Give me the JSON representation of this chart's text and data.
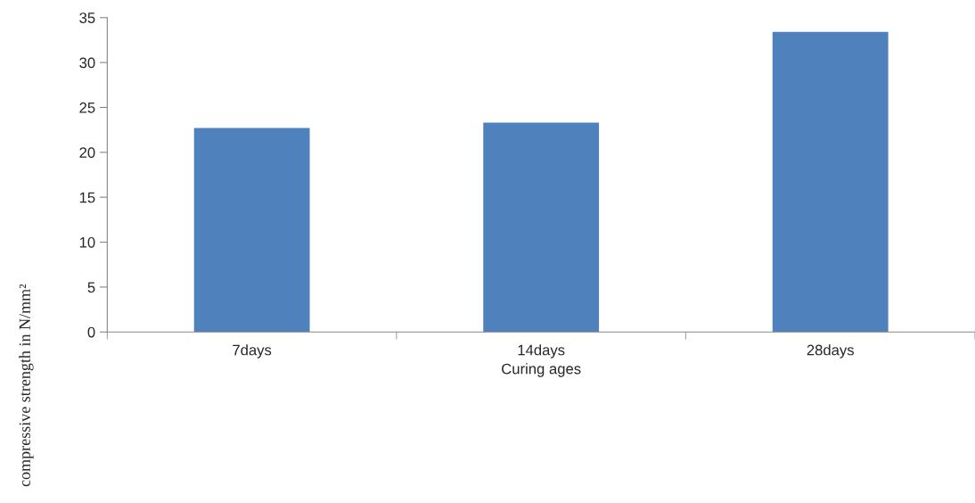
{
  "chart_data": {
    "type": "bar",
    "xlabel": "Curing ages",
    "ylabel": "compressive strength in N/mm²",
    "categories": [
      "7days",
      "14days",
      "28days"
    ],
    "values": [
      22.7,
      23.3,
      33.4
    ],
    "color": "#4f81bd",
    "ylim": [
      0,
      35
    ],
    "yticks": [
      0,
      5,
      10,
      15,
      20,
      25,
      30,
      35
    ],
    "grid": false
  }
}
